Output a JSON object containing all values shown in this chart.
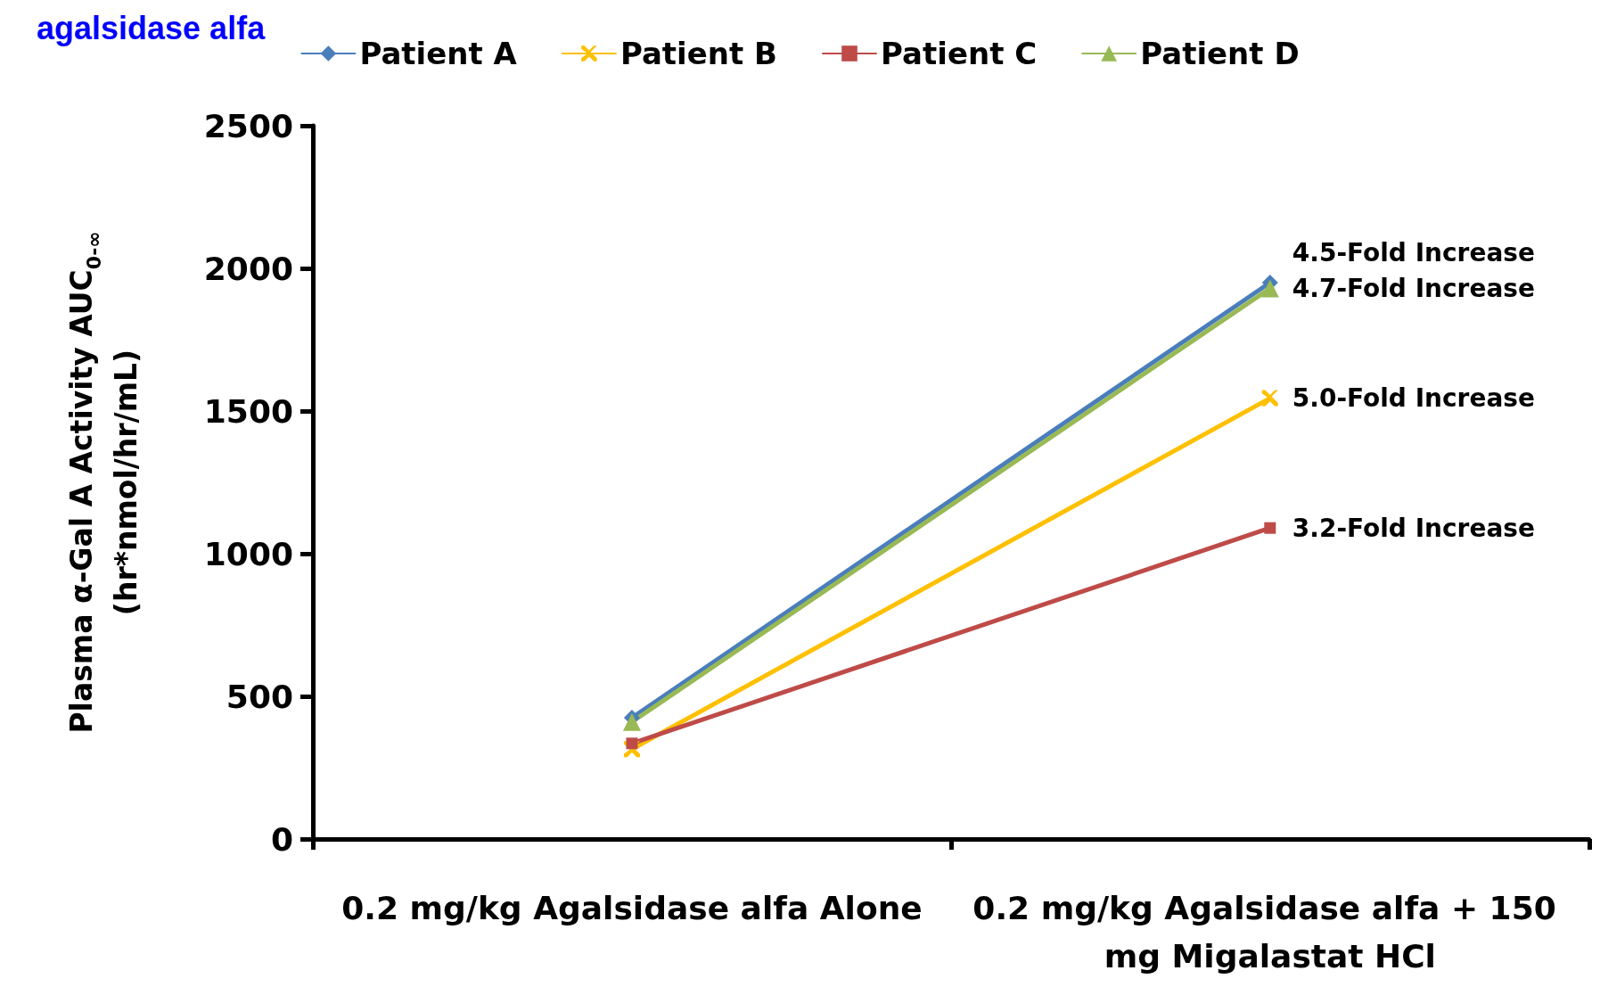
{
  "chart_data": {
    "type": "line",
    "title": "agalsidase alfa",
    "categories": [
      "0.2 mg/kg Agalsidase alfa Alone",
      "0.2 mg/kg Agalsidase alfa + 150 mg Migalastat HCl"
    ],
    "ylabel": "Plasma α-Gal A Activity AUC$_{0-∞}$\n(hr*nmol/hr/mL)",
    "ylim": [
      0,
      2500
    ],
    "yticks": [
      0,
      500,
      1000,
      1500,
      2000,
      2500
    ],
    "grid": false,
    "legend": "top",
    "series": [
      {
        "name": "Patient A",
        "color": "#4a7ebb",
        "marker": "diamond",
        "values": [
          425,
          1950
        ]
      },
      {
        "name": "Patient B",
        "color": "#ffc000",
        "marker": "cross",
        "values": [
          315,
          1545
        ]
      },
      {
        "name": "Patient C",
        "color": "#be4b48",
        "marker": "square",
        "values": [
          335,
          1090
        ]
      },
      {
        "name": "Patient D",
        "color": "#98b954",
        "marker": "triangle",
        "values": [
          410,
          1930
        ]
      }
    ],
    "annotations": [
      {
        "text": "4.5-Fold Increase",
        "x": "0.2 mg/kg Agalsidase alfa + 150 mg Migalastat HCl",
        "y": 1950
      },
      {
        "text": "4.7-Fold Increase",
        "x": "0.2 mg/kg Agalsidase alfa + 150 mg Migalastat HCl",
        "y": 1930
      },
      {
        "text": "5.0-Fold Increase",
        "x": "0.2 mg/kg Agalsidase alfa + 150 mg Migalastat HCl",
        "y": 1545
      },
      {
        "text": "3.2-Fold Increase",
        "x": "0.2 mg/kg Agalsidase alfa + 150 mg Migalastat HCl",
        "y": 1090
      }
    ]
  }
}
